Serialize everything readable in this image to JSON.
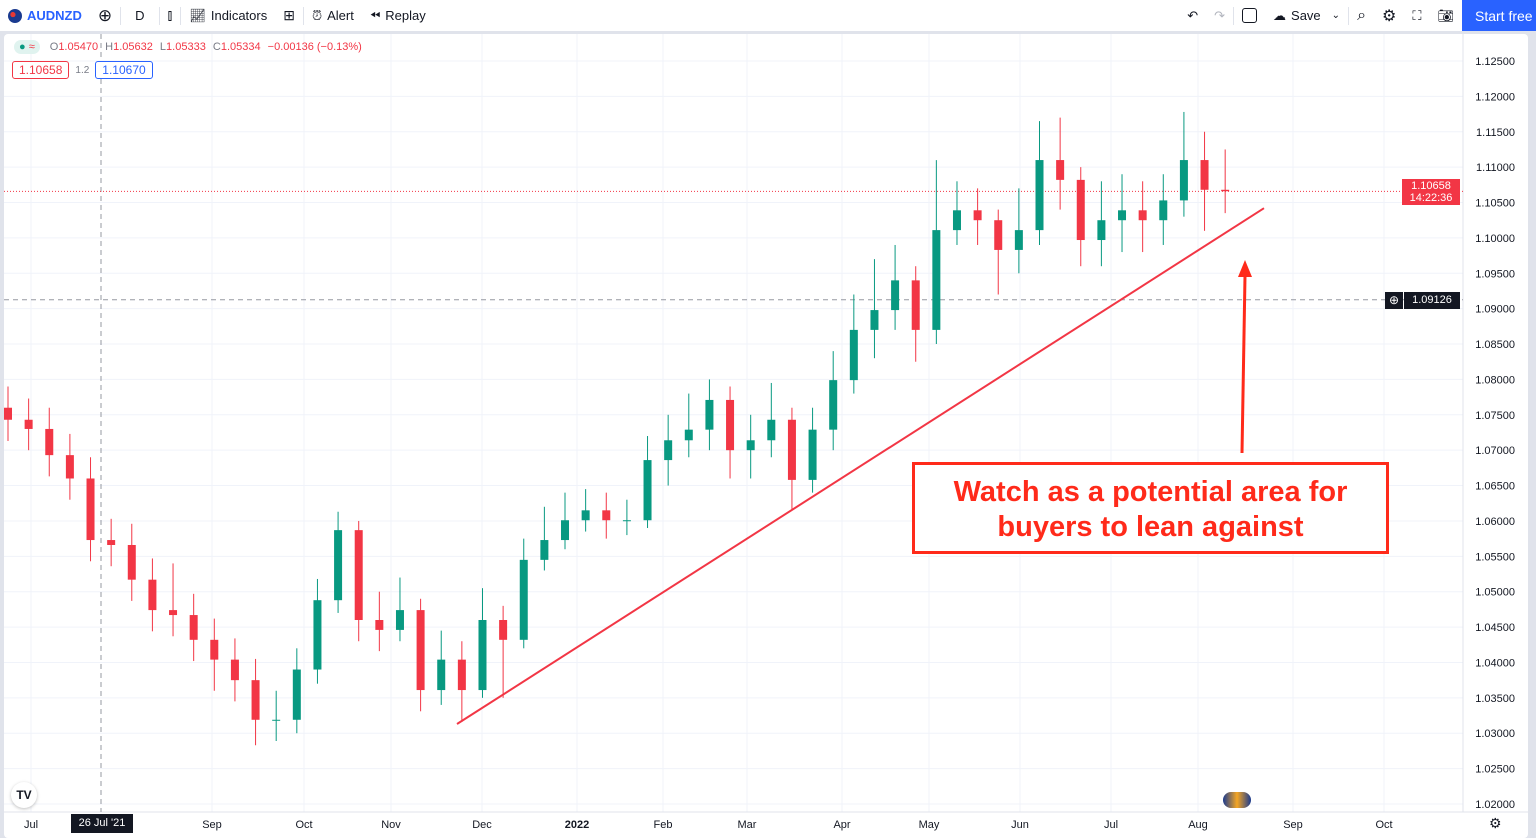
{
  "toolbar": {
    "symbol": "AUDNZD",
    "interval": "D",
    "indicators": "Indicators",
    "alert": "Alert",
    "replay": "Replay",
    "save": "Save",
    "start_free": "Start free"
  },
  "legend": {
    "o": "1.05470",
    "h": "1.05632",
    "l": "1.05333",
    "c": "1.05334",
    "change": "−0.00136 (−0.13%)"
  },
  "quotes": {
    "bid": "1.10658",
    "spread": "1.2",
    "ask": "1.10670"
  },
  "current_price": {
    "value": "1.10658",
    "countdown": "14:22:36"
  },
  "crosshair": {
    "price": "1.09126",
    "date": "26 Jul '21"
  },
  "annotation": {
    "line1": "Watch as a potential area for",
    "line2": "buyers to lean against"
  },
  "colors": {
    "up": "#089981",
    "down": "#f23645",
    "annotation": "#ff2a1a",
    "accent": "#2962ff"
  },
  "chart_data": {
    "type": "candlestick",
    "ylim": [
      1.02,
      1.125
    ],
    "price_ticks": [
      "1.12500",
      "1.12000",
      "1.11500",
      "1.11000",
      "1.10500",
      "1.10000",
      "1.09500",
      "1.09000",
      "1.08500",
      "1.08000",
      "1.07500",
      "1.07000",
      "1.06500",
      "1.06000",
      "1.05500",
      "1.05000",
      "1.04500",
      "1.04000",
      "1.03500",
      "1.03000",
      "1.02500",
      "1.02000"
    ],
    "time_ticks": [
      "Jul",
      "Sep",
      "Oct",
      "Nov",
      "Dec",
      "2022",
      "Feb",
      "Mar",
      "Apr",
      "May",
      "Jun",
      "Jul",
      "Aug",
      "Sep",
      "Oct"
    ],
    "candles_ohlc": [
      [
        1.076,
        1.079,
        1.0713,
        1.0743
      ],
      [
        1.0743,
        1.0773,
        1.07,
        1.073
      ],
      [
        1.073,
        1.076,
        1.0663,
        1.0693
      ],
      [
        1.0693,
        1.0723,
        1.063,
        1.066
      ],
      [
        1.066,
        1.069,
        1.0543,
        1.0573
      ],
      [
        1.0573,
        1.0603,
        1.0536,
        1.0566
      ],
      [
        1.0566,
        1.0596,
        1.0487,
        1.0517
      ],
      [
        1.0517,
        1.0547,
        1.0444,
        1.0474
      ],
      [
        1.0474,
        1.054,
        1.0437,
        1.0467
      ],
      [
        1.0467,
        1.0497,
        1.0402,
        1.0432
      ],
      [
        1.0432,
        1.0462,
        1.036,
        1.0404
      ],
      [
        1.0404,
        1.0434,
        1.0345,
        1.0375
      ],
      [
        1.0375,
        1.0405,
        1.0283,
        1.0319
      ],
      [
        1.0319,
        1.036,
        1.0289,
        1.0319
      ],
      [
        1.0319,
        1.042,
        1.03,
        1.039
      ],
      [
        1.039,
        1.0518,
        1.037,
        1.0488
      ],
      [
        1.0488,
        1.0613,
        1.047,
        1.0587
      ],
      [
        1.0587,
        1.06,
        1.043,
        1.046
      ],
      [
        1.046,
        1.05,
        1.0416,
        1.0446
      ],
      [
        1.0446,
        1.052,
        1.043,
        1.0474
      ],
      [
        1.0474,
        1.049,
        1.0331,
        1.0361
      ],
      [
        1.0361,
        1.0445,
        1.034,
        1.0404
      ],
      [
        1.0404,
        1.043,
        1.0316,
        1.0361
      ],
      [
        1.0361,
        1.0505,
        1.035,
        1.046
      ],
      [
        1.046,
        1.048,
        1.035,
        1.0432
      ],
      [
        1.0432,
        1.0575,
        1.042,
        1.0545
      ],
      [
        1.0545,
        1.062,
        1.053,
        1.0573
      ],
      [
        1.0573,
        1.064,
        1.056,
        1.0601
      ],
      [
        1.0601,
        1.0645,
        1.0585,
        1.0615
      ],
      [
        1.0615,
        1.064,
        1.0575,
        1.0601
      ],
      [
        1.0601,
        1.063,
        1.058,
        1.0601
      ],
      [
        1.0601,
        1.072,
        1.059,
        1.0686
      ],
      [
        1.0686,
        1.075,
        1.065,
        1.0714
      ],
      [
        1.0714,
        1.078,
        1.069,
        1.0729
      ],
      [
        1.0729,
        1.08,
        1.07,
        1.0771
      ],
      [
        1.0771,
        1.079,
        1.066,
        1.07
      ],
      [
        1.07,
        1.075,
        1.066,
        1.0714
      ],
      [
        1.0714,
        1.0795,
        1.069,
        1.0743
      ],
      [
        1.0743,
        1.076,
        1.0615,
        1.0658
      ],
      [
        1.0658,
        1.076,
        1.064,
        1.0729
      ],
      [
        1.0729,
        1.084,
        1.07,
        1.0799
      ],
      [
        1.0799,
        1.092,
        1.078,
        1.087
      ],
      [
        1.087,
        1.097,
        1.083,
        1.0898
      ],
      [
        1.0898,
        1.099,
        1.087,
        1.094
      ],
      [
        1.094,
        1.096,
        1.0825,
        1.087
      ],
      [
        1.087,
        1.111,
        1.085,
        1.1011
      ],
      [
        1.1011,
        1.108,
        1.099,
        1.1039
      ],
      [
        1.1039,
        1.107,
        1.099,
        1.1025
      ],
      [
        1.1025,
        1.104,
        1.092,
        1.0983
      ],
      [
        1.0983,
        1.107,
        1.095,
        1.1011
      ],
      [
        1.1011,
        1.1165,
        1.099,
        1.111
      ],
      [
        1.111,
        1.117,
        1.104,
        1.1082
      ],
      [
        1.1082,
        1.11,
        1.096,
        1.0997
      ],
      [
        1.0997,
        1.108,
        1.096,
        1.1025
      ],
      [
        1.1025,
        1.109,
        1.098,
        1.1039
      ],
      [
        1.1039,
        1.108,
        1.098,
        1.1025
      ],
      [
        1.1025,
        1.109,
        1.099,
        1.1053
      ],
      [
        1.1053,
        1.1178,
        1.103,
        1.111
      ],
      [
        1.111,
        1.115,
        1.101,
        1.1068
      ],
      [
        1.1068,
        1.1125,
        1.1035,
        1.1066
      ]
    ],
    "trendline": {
      "from_price": 1.0313,
      "to_price": 1.1042
    },
    "current_price_line": 1.10658,
    "crosshair_price": 1.09126
  }
}
